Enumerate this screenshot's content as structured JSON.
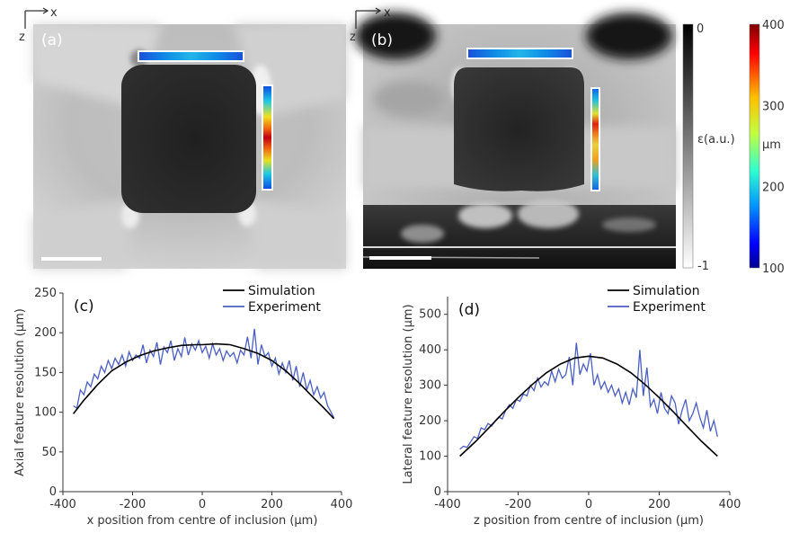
{
  "panels": {
    "a": {
      "label": "(a)"
    },
    "b": {
      "label": "(b)"
    }
  },
  "orientation": {
    "x_axis": "x",
    "z_axis": "z"
  },
  "colorbars": {
    "grey": {
      "top_label": "0",
      "bottom_label": "-1",
      "title": "ε(a.u.)"
    },
    "jet": {
      "ticks": [
        "400",
        "300",
        "200",
        "100"
      ],
      "unit": "μm"
    }
  },
  "colors": {
    "simulation": "#000000",
    "experiment": "#4a5fc1"
  },
  "chart_data": [
    {
      "type": "line",
      "panel": "(c)",
      "xlabel": "x position from centre of inclusion (μm)",
      "ylabel": "Axial feature resolution (μm)",
      "xlim": [
        -400,
        400
      ],
      "ylim": [
        0,
        250
      ],
      "xticks": [
        "-400",
        "-200",
        "0",
        "200",
        "400"
      ],
      "yticks": [
        "0",
        "50",
        "100",
        "150",
        "200",
        "250"
      ],
      "legend": "top-right",
      "series": [
        {
          "name": "Simulation",
          "x": [
            -370,
            -340,
            -300,
            -260,
            -220,
            -180,
            -140,
            -100,
            -60,
            -20,
            0,
            40,
            80,
            120,
            160,
            200,
            240,
            280,
            320,
            350,
            378
          ],
          "y": [
            98,
            115,
            135,
            152,
            163,
            171,
            177,
            181,
            184,
            185,
            185,
            186,
            185,
            180,
            174,
            165,
            152,
            136,
            118,
            105,
            92
          ]
        },
        {
          "name": "Experiment",
          "x": [
            -370,
            -360,
            -350,
            -340,
            -330,
            -320,
            -310,
            -300,
            -290,
            -280,
            -270,
            -260,
            -250,
            -240,
            -230,
            -220,
            -210,
            -200,
            -190,
            -180,
            -170,
            -160,
            -150,
            -140,
            -130,
            -120,
            -110,
            -100,
            -90,
            -80,
            -70,
            -60,
            -50,
            -40,
            -30,
            -20,
            -10,
            0,
            10,
            20,
            30,
            40,
            50,
            60,
            70,
            80,
            90,
            100,
            110,
            120,
            130,
            140,
            150,
            160,
            170,
            180,
            190,
            200,
            210,
            220,
            230,
            240,
            250,
            260,
            270,
            280,
            290,
            300,
            310,
            320,
            330,
            340,
            350,
            360,
            370,
            378
          ],
          "y": [
            108,
            105,
            128,
            122,
            138,
            132,
            148,
            142,
            158,
            150,
            165,
            155,
            168,
            160,
            172,
            158,
            176,
            165,
            172,
            168,
            185,
            162,
            178,
            170,
            188,
            160,
            182,
            175,
            190,
            165,
            180,
            170,
            194,
            172,
            186,
            178,
            190,
            175,
            183,
            168,
            186,
            172,
            180,
            165,
            177,
            170,
            175,
            162,
            178,
            172,
            195,
            168,
            205,
            160,
            185,
            170,
            175,
            158,
            168,
            148,
            162,
            150,
            165,
            140,
            158,
            132,
            150,
            128,
            140,
            122,
            132,
            118,
            125,
            108,
            100,
            93
          ]
        }
      ]
    },
    {
      "type": "line",
      "panel": "(d)",
      "xlabel": "z position from centre of inclusion (μm)",
      "ylabel": "Lateral feature resolution (μm)",
      "xlim": [
        -400,
        400
      ],
      "ylim": [
        0,
        550
      ],
      "xticks": [
        "-400",
        "-200",
        "0",
        "200",
        "400"
      ],
      "yticks": [
        "0",
        "100",
        "200",
        "300",
        "400",
        "500"
      ],
      "legend": "top-right",
      "series": [
        {
          "name": "Simulation",
          "x": [
            -365,
            -320,
            -280,
            -240,
            -200,
            -160,
            -120,
            -80,
            -40,
            0,
            40,
            80,
            120,
            160,
            200,
            240,
            280,
            320,
            365
          ],
          "y": [
            100,
            142,
            183,
            225,
            265,
            302,
            335,
            360,
            377,
            382,
            377,
            360,
            335,
            302,
            265,
            225,
            183,
            142,
            100
          ]
        },
        {
          "name": "Experiment",
          "x": [
            -365,
            -355,
            -345,
            -335,
            -325,
            -315,
            -305,
            -295,
            -285,
            -275,
            -265,
            -255,
            -245,
            -235,
            -225,
            -215,
            -205,
            -195,
            -185,
            -175,
            -165,
            -155,
            -145,
            -135,
            -125,
            -115,
            -105,
            -95,
            -85,
            -75,
            -65,
            -55,
            -45,
            -35,
            -25,
            -15,
            -5,
            5,
            15,
            25,
            35,
            45,
            55,
            65,
            75,
            85,
            95,
            105,
            115,
            125,
            135,
            145,
            155,
            165,
            175,
            185,
            195,
            205,
            215,
            225,
            235,
            245,
            255,
            265,
            275,
            285,
            295,
            305,
            315,
            325,
            335,
            345,
            355,
            365
          ],
          "y": [
            120,
            128,
            125,
            140,
            155,
            150,
            180,
            175,
            192,
            185,
            200,
            210,
            205,
            230,
            245,
            235,
            260,
            255,
            275,
            270,
            300,
            285,
            320,
            295,
            310,
            300,
            340,
            310,
            345,
            320,
            330,
            380,
            300,
            420,
            330,
            360,
            340,
            390,
            300,
            330,
            290,
            310,
            280,
            300,
            270,
            290,
            250,
            280,
            245,
            290,
            265,
            400,
            270,
            350,
            240,
            260,
            220,
            280,
            235,
            220,
            270,
            250,
            190,
            230,
            260,
            200,
            220,
            250,
            210,
            180,
            230,
            170,
            200,
            155
          ]
        }
      ]
    }
  ]
}
